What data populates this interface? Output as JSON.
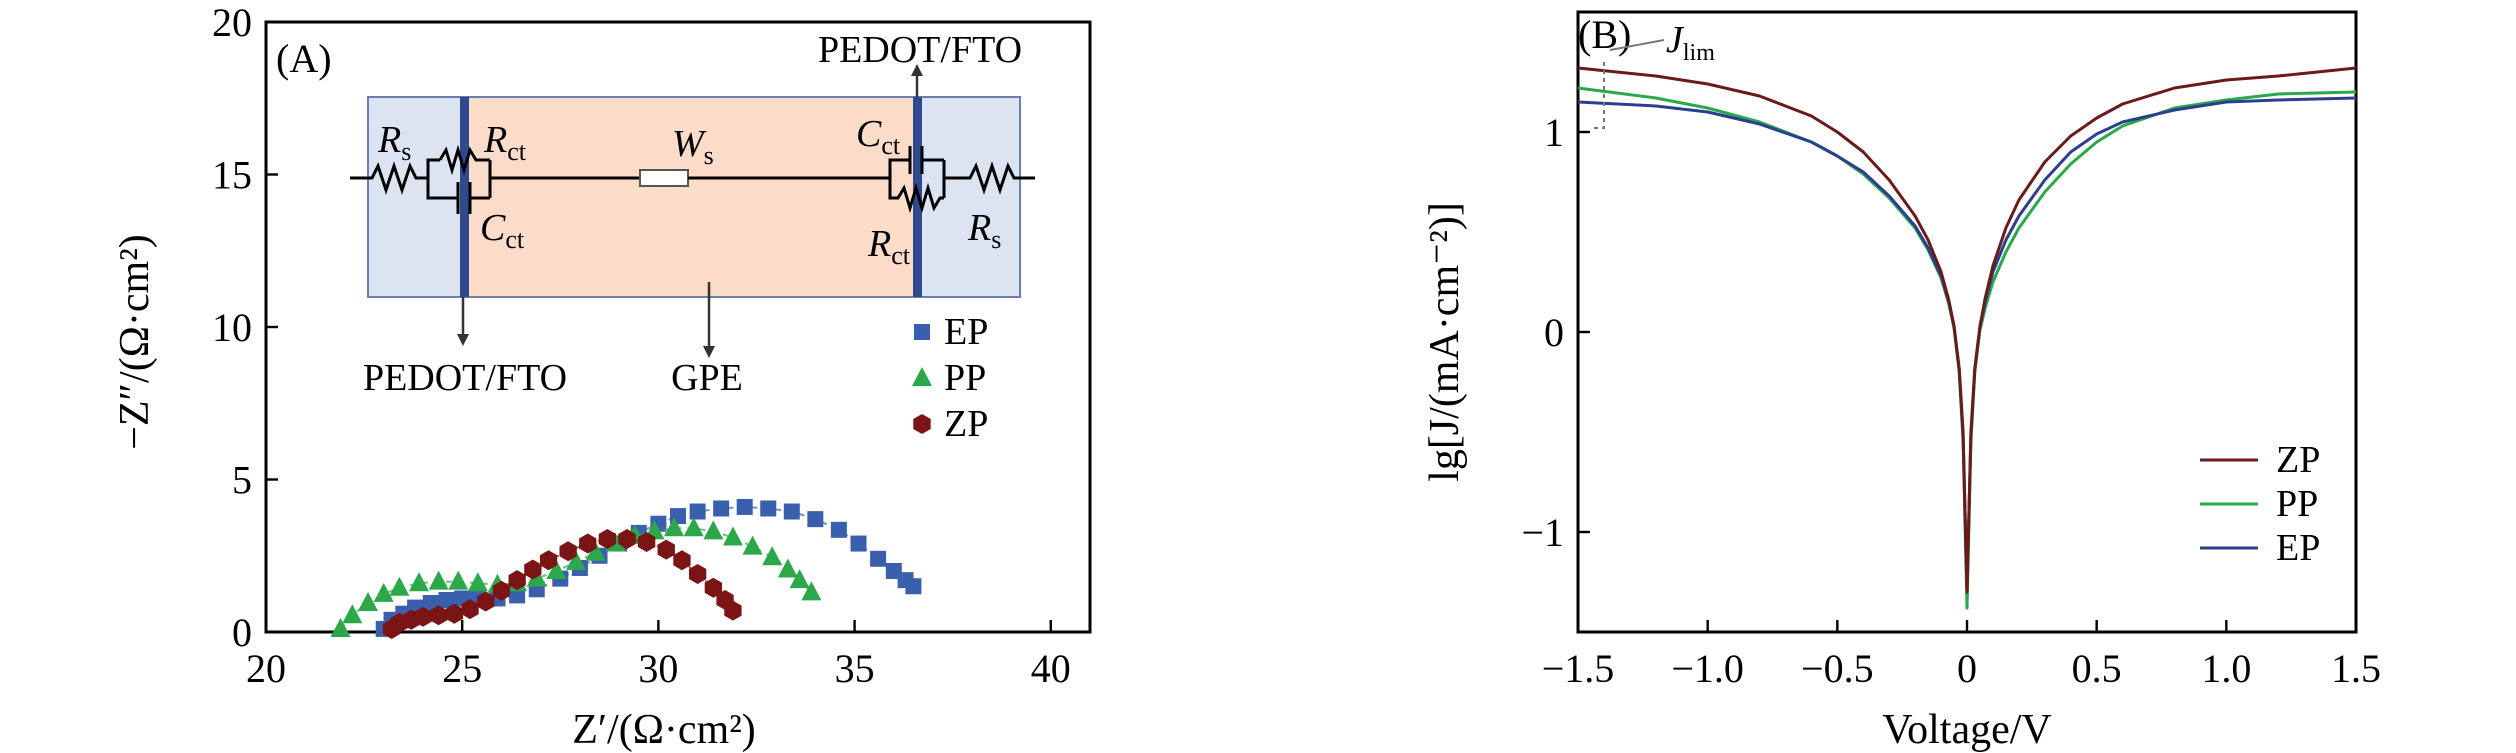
{
  "panel_a": {
    "tag": "(A)",
    "xlabel": "Z′/(Ω·cm²)",
    "ylabel": "−Z″/(Ω·cm²)",
    "inset": {
      "top_label": "PEDOT/FTO",
      "bottom_left_label": "PEDOT/FTO",
      "bottom_mid_label": "GPE",
      "rs_left": "R",
      "rs_left_sub": "s",
      "rct_left": "R",
      "rct_left_sub": "ct",
      "cct_left": "C",
      "cct_left_sub": "ct",
      "ws": "W",
      "ws_sub": "s",
      "cct_right": "C",
      "cct_right_sub": "ct",
      "rct_right": "R",
      "rct_right_sub": "ct",
      "rs_right": "R",
      "rs_right_sub": "s",
      "colors": {
        "electrode_band": "#dce4f2",
        "electrolyte_band": "#fadcc8",
        "electrode_bar": "#2e4a8c"
      }
    }
  },
  "panel_b": {
    "tag": "(B)",
    "xlabel": "Voltage/V",
    "ylabel": "lg[J/(mA·cm⁻²)]",
    "annotation": "J",
    "annotation_sub": "lim"
  },
  "chart_data": [
    {
      "type": "scatter",
      "xlabel": "Z′/(Ω·cm²)",
      "ylabel": "−Z″/(Ω·cm²)",
      "xlim": [
        20,
        41
      ],
      "ylim": [
        0,
        20
      ],
      "xticks": [
        20,
        25,
        30,
        35,
        40
      ],
      "yticks": [
        0,
        5,
        10,
        15,
        20
      ],
      "grid": false,
      "legend_position": "middle-right",
      "series": [
        {
          "name": "EP",
          "marker": "square",
          "color": "#3a5fad",
          "x": [
            23.0,
            23.2,
            23.5,
            23.8,
            24.2,
            24.6,
            25.0,
            25.4,
            25.9,
            26.4,
            26.9,
            27.5,
            28.0,
            28.5,
            29.0,
            29.5,
            30.0,
            30.5,
            31.0,
            31.6,
            32.2,
            32.8,
            33.4,
            34.0,
            34.6,
            35.1,
            35.6,
            36.0,
            36.3,
            36.5
          ],
          "y": [
            0.1,
            0.4,
            0.6,
            0.8,
            0.95,
            1.05,
            1.1,
            1.1,
            1.1,
            1.2,
            1.4,
            1.75,
            2.1,
            2.5,
            2.9,
            3.25,
            3.55,
            3.8,
            3.95,
            4.05,
            4.1,
            4.05,
            3.95,
            3.7,
            3.35,
            2.9,
            2.4,
            2.0,
            1.7,
            1.5
          ]
        },
        {
          "name": "PP",
          "marker": "triangle",
          "color": "#2ca84a",
          "x": [
            21.9,
            22.2,
            22.6,
            23.0,
            23.4,
            23.9,
            24.4,
            24.9,
            25.4,
            25.9,
            26.4,
            26.9,
            27.4,
            27.9,
            28.4,
            28.9,
            29.4,
            29.9,
            30.4,
            30.9,
            31.4,
            31.9,
            32.4,
            32.9,
            33.3,
            33.6,
            33.9
          ],
          "y": [
            0.1,
            0.55,
            0.95,
            1.25,
            1.45,
            1.6,
            1.65,
            1.65,
            1.6,
            1.55,
            1.6,
            1.75,
            2.0,
            2.3,
            2.6,
            2.9,
            3.15,
            3.3,
            3.4,
            3.4,
            3.3,
            3.1,
            2.8,
            2.45,
            2.05,
            1.7,
            1.3
          ]
        },
        {
          "name": "ZP",
          "marker": "hexagon",
          "color": "#7b1414",
          "x": [
            23.2,
            23.4,
            23.7,
            24.0,
            24.4,
            24.8,
            25.2,
            25.6,
            26.0,
            26.4,
            26.8,
            27.2,
            27.7,
            28.2,
            28.7,
            29.2,
            29.7,
            30.2,
            30.6,
            31.0,
            31.4,
            31.7,
            31.9
          ],
          "y": [
            0.1,
            0.3,
            0.4,
            0.5,
            0.55,
            0.6,
            0.75,
            1.0,
            1.35,
            1.7,
            2.05,
            2.35,
            2.65,
            2.9,
            3.05,
            3.05,
            2.95,
            2.7,
            2.35,
            1.9,
            1.45,
            1.05,
            0.7
          ]
        }
      ]
    },
    {
      "type": "line",
      "xlabel": "Voltage/V",
      "ylabel": "lg[J/(mA·cm⁻²)]",
      "xlim": [
        -1.5,
        1.5
      ],
      "ylim": [
        -1.5,
        1.6
      ],
      "xticks": [
        -1.5,
        -1.0,
        -0.5,
        0,
        0.5,
        1.0,
        1.5
      ],
      "xticklabels": [
        "−1.5",
        "−1.0",
        "−0.5",
        "0",
        "0.5",
        "1.0",
        "1.5"
      ],
      "yticks": [
        -1,
        0,
        1
      ],
      "yticklabels": [
        "−1",
        "0",
        "1"
      ],
      "grid": false,
      "legend_position": "bottom-right",
      "series": [
        {
          "name": "ZP",
          "color": "#6b1a1a",
          "x": [
            -1.5,
            -1.2,
            -1.0,
            -0.8,
            -0.6,
            -0.5,
            -0.4,
            -0.3,
            -0.2,
            -0.15,
            -0.1,
            -0.07,
            -0.05,
            -0.03,
            -0.015,
            0,
            0.015,
            0.03,
            0.05,
            0.07,
            0.1,
            0.15,
            0.2,
            0.3,
            0.4,
            0.5,
            0.6,
            0.8,
            1.0,
            1.2,
            1.5
          ],
          "y": [
            1.32,
            1.28,
            1.24,
            1.18,
            1.08,
            1.0,
            0.9,
            0.76,
            0.58,
            0.46,
            0.3,
            0.16,
            0.03,
            -0.18,
            -0.5,
            -1.3,
            -0.5,
            -0.18,
            0.03,
            0.17,
            0.33,
            0.52,
            0.66,
            0.85,
            0.98,
            1.07,
            1.14,
            1.22,
            1.26,
            1.28,
            1.32
          ]
        },
        {
          "name": "PP",
          "color": "#2aa84a",
          "x": [
            -1.5,
            -1.2,
            -1.0,
            -0.8,
            -0.6,
            -0.5,
            -0.4,
            -0.3,
            -0.2,
            -0.15,
            -0.1,
            -0.07,
            -0.05,
            -0.03,
            -0.015,
            0,
            0.015,
            0.03,
            0.05,
            0.07,
            0.1,
            0.15,
            0.2,
            0.3,
            0.4,
            0.5,
            0.6,
            0.8,
            1.0,
            1.2,
            1.5
          ],
          "y": [
            1.22,
            1.17,
            1.12,
            1.05,
            0.95,
            0.88,
            0.79,
            0.67,
            0.52,
            0.41,
            0.27,
            0.14,
            0.02,
            -0.2,
            -0.55,
            -1.38,
            -0.55,
            -0.2,
            0.01,
            0.12,
            0.25,
            0.4,
            0.52,
            0.7,
            0.84,
            0.95,
            1.03,
            1.12,
            1.16,
            1.19,
            1.2
          ]
        },
        {
          "name": "EP",
          "color": "#2b3f8f",
          "x": [
            -1.5,
            -1.2,
            -1.0,
            -0.8,
            -0.6,
            -0.5,
            -0.4,
            -0.3,
            -0.2,
            -0.15,
            -0.1,
            -0.07,
            -0.05,
            -0.03,
            -0.015,
            0,
            0.015,
            0.03,
            0.05,
            0.07,
            0.1,
            0.15,
            0.2,
            0.3,
            0.4,
            0.5,
            0.6,
            0.8,
            1.0,
            1.2,
            1.5
          ],
          "y": [
            1.15,
            1.13,
            1.1,
            1.04,
            0.95,
            0.88,
            0.8,
            0.68,
            0.53,
            0.42,
            0.28,
            0.15,
            0.03,
            -0.19,
            -0.52,
            -1.3,
            -0.52,
            -0.19,
            0.03,
            0.15,
            0.3,
            0.46,
            0.58,
            0.76,
            0.9,
            0.99,
            1.05,
            1.11,
            1.15,
            1.16,
            1.17
          ]
        }
      ]
    }
  ]
}
